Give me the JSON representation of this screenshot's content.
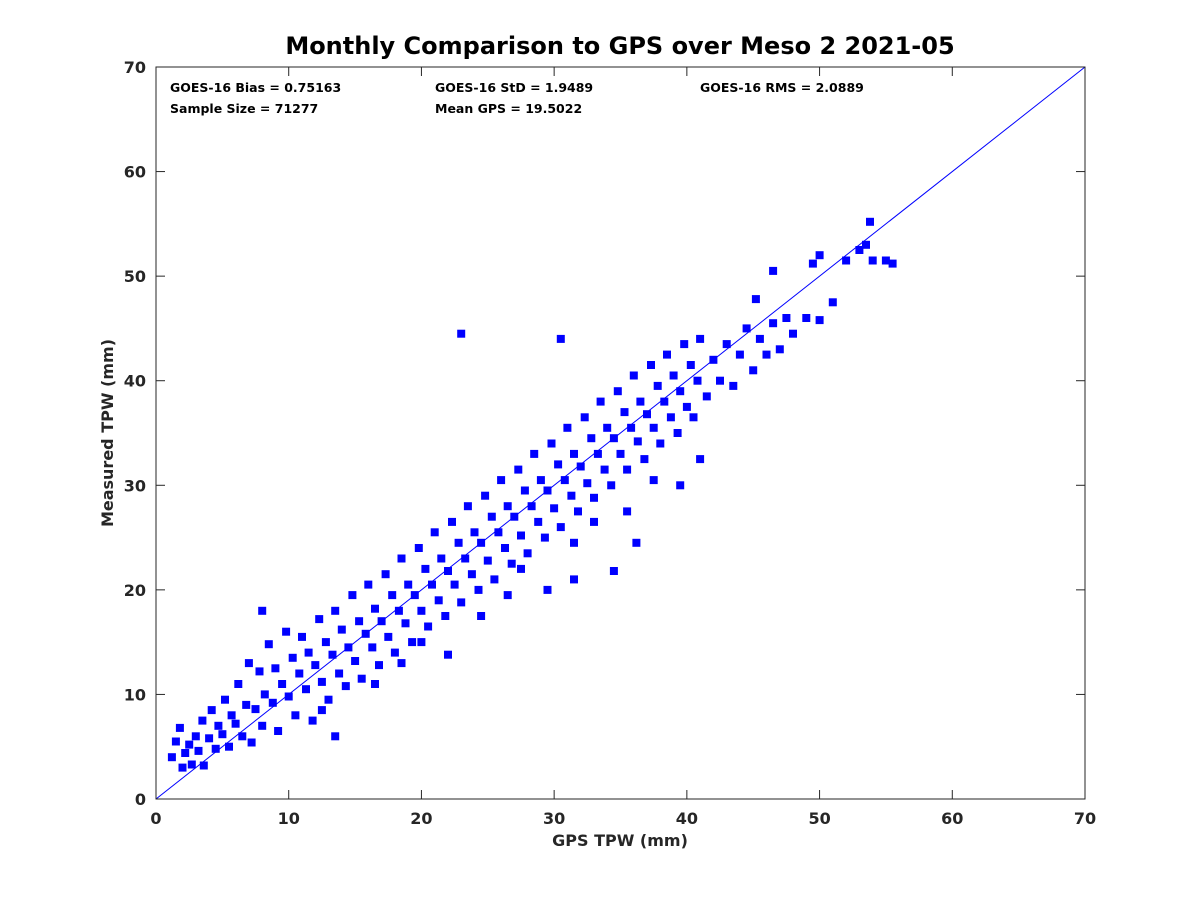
{
  "chart_data": {
    "type": "scatter",
    "title": "Monthly Comparison to GPS over Meso 2 2021-05",
    "xlabel": "GPS TPW (mm)",
    "ylabel": "Measured TPW (mm)",
    "xlim": [
      0,
      70
    ],
    "ylim": [
      0,
      70
    ],
    "xticks": [
      0,
      10,
      20,
      30,
      40,
      50,
      60,
      70
    ],
    "yticks": [
      0,
      10,
      20,
      30,
      40,
      50,
      60,
      70
    ],
    "grid": false,
    "marker": "square",
    "color": "#0000ff",
    "reference_line": {
      "from": [
        0,
        0
      ],
      "to": [
        70,
        70
      ],
      "color": "#0000ff"
    },
    "stats": [
      "GOES-16 Bias = 0.75163",
      "GOES-16 StD = 1.9489",
      "GOES-16 RMS = 2.0889",
      "Sample Size = 71277",
      "Mean GPS = 19.5022"
    ],
    "points": [
      [
        1.2,
        4.0
      ],
      [
        1.5,
        5.5
      ],
      [
        1.8,
        6.8
      ],
      [
        2.0,
        3.0
      ],
      [
        2.2,
        4.4
      ],
      [
        2.5,
        5.2
      ],
      [
        2.7,
        3.3
      ],
      [
        3.0,
        6.0
      ],
      [
        3.2,
        4.6
      ],
      [
        3.5,
        7.5
      ],
      [
        3.6,
        3.2
      ],
      [
        4.0,
        5.8
      ],
      [
        4.2,
        8.5
      ],
      [
        4.5,
        4.8
      ],
      [
        4.7,
        7.0
      ],
      [
        5.0,
        6.2
      ],
      [
        5.2,
        9.5
      ],
      [
        5.5,
        5.0
      ],
      [
        5.7,
        8.0
      ],
      [
        6.0,
        7.2
      ],
      [
        6.2,
        11.0
      ],
      [
        6.5,
        6.0
      ],
      [
        6.8,
        9.0
      ],
      [
        7.0,
        13.0
      ],
      [
        7.2,
        5.4
      ],
      [
        7.5,
        8.6
      ],
      [
        7.8,
        12.2
      ],
      [
        8.0,
        7.0
      ],
      [
        8.2,
        10.0
      ],
      [
        8.5,
        14.8
      ],
      [
        8.8,
        9.2
      ],
      [
        9.0,
        12.5
      ],
      [
        9.2,
        6.5
      ],
      [
        9.5,
        11.0
      ],
      [
        9.8,
        16.0
      ],
      [
        10.0,
        9.8
      ],
      [
        10.3,
        13.5
      ],
      [
        10.5,
        8.0
      ],
      [
        10.8,
        12.0
      ],
      [
        11.0,
        15.5
      ],
      [
        11.3,
        10.5
      ],
      [
        11.5,
        14.0
      ],
      [
        11.8,
        7.5
      ],
      [
        12.0,
        12.8
      ],
      [
        12.3,
        17.2
      ],
      [
        12.5,
        11.2
      ],
      [
        12.8,
        15.0
      ],
      [
        13.0,
        9.5
      ],
      [
        13.3,
        13.8
      ],
      [
        13.5,
        18.0
      ],
      [
        13.8,
        12.0
      ],
      [
        14.0,
        16.2
      ],
      [
        14.3,
        10.8
      ],
      [
        14.5,
        14.5
      ],
      [
        14.8,
        19.5
      ],
      [
        15.0,
        13.2
      ],
      [
        15.3,
        17.0
      ],
      [
        15.5,
        11.5
      ],
      [
        15.8,
        15.8
      ],
      [
        16.0,
        20.5
      ],
      [
        16.3,
        14.5
      ],
      [
        16.5,
        18.2
      ],
      [
        16.8,
        12.8
      ],
      [
        17.0,
        17.0
      ],
      [
        17.3,
        21.5
      ],
      [
        17.5,
        15.5
      ],
      [
        17.8,
        19.5
      ],
      [
        18.0,
        14.0
      ],
      [
        18.3,
        18.0
      ],
      [
        18.5,
        23.0
      ],
      [
        18.8,
        16.8
      ],
      [
        19.0,
        20.5
      ],
      [
        19.3,
        15.0
      ],
      [
        19.5,
        19.5
      ],
      [
        19.8,
        24.0
      ],
      [
        20.0,
        18.0
      ],
      [
        20.3,
        22.0
      ],
      [
        20.5,
        16.5
      ],
      [
        20.8,
        20.5
      ],
      [
        21.0,
        25.5
      ],
      [
        21.3,
        19.0
      ],
      [
        21.5,
        23.0
      ],
      [
        21.8,
        17.5
      ],
      [
        22.0,
        21.8
      ],
      [
        22.3,
        26.5
      ],
      [
        22.5,
        20.5
      ],
      [
        22.8,
        24.5
      ],
      [
        23.0,
        18.8
      ],
      [
        23.3,
        23.0
      ],
      [
        23.5,
        28.0
      ],
      [
        23.8,
        21.5
      ],
      [
        24.0,
        25.5
      ],
      [
        24.3,
        20.0
      ],
      [
        24.5,
        24.5
      ],
      [
        24.8,
        29.0
      ],
      [
        25.0,
        22.8
      ],
      [
        25.3,
        27.0
      ],
      [
        25.5,
        21.0
      ],
      [
        25.8,
        25.5
      ],
      [
        26.0,
        30.5
      ],
      [
        26.3,
        24.0
      ],
      [
        26.5,
        28.0
      ],
      [
        26.8,
        22.5
      ],
      [
        27.0,
        27.0
      ],
      [
        27.3,
        31.5
      ],
      [
        27.5,
        25.2
      ],
      [
        27.8,
        29.5
      ],
      [
        28.0,
        23.5
      ],
      [
        28.3,
        28.0
      ],
      [
        28.5,
        33.0
      ],
      [
        28.8,
        26.5
      ],
      [
        29.0,
        30.5
      ],
      [
        29.3,
        25.0
      ],
      [
        29.5,
        29.5
      ],
      [
        29.8,
        34.0
      ],
      [
        30.0,
        27.8
      ],
      [
        30.3,
        32.0
      ],
      [
        30.5,
        26.0
      ],
      [
        30.8,
        30.5
      ],
      [
        31.0,
        35.5
      ],
      [
        31.3,
        29.0
      ],
      [
        31.5,
        33.0
      ],
      [
        31.8,
        27.5
      ],
      [
        32.0,
        31.8
      ],
      [
        32.3,
        36.5
      ],
      [
        32.5,
        30.2
      ],
      [
        32.8,
        34.5
      ],
      [
        33.0,
        28.8
      ],
      [
        33.3,
        33.0
      ],
      [
        33.5,
        38.0
      ],
      [
        33.8,
        31.5
      ],
      [
        34.0,
        35.5
      ],
      [
        34.3,
        30.0
      ],
      [
        34.5,
        34.5
      ],
      [
        34.8,
        39.0
      ],
      [
        35.0,
        33.0
      ],
      [
        35.3,
        37.0
      ],
      [
        35.5,
        31.5
      ],
      [
        35.8,
        35.5
      ],
      [
        36.0,
        40.5
      ],
      [
        36.3,
        34.2
      ],
      [
        36.5,
        38.0
      ],
      [
        36.8,
        32.5
      ],
      [
        37.0,
        36.8
      ],
      [
        37.3,
        41.5
      ],
      [
        37.5,
        35.5
      ],
      [
        37.8,
        39.5
      ],
      [
        38.0,
        34.0
      ],
      [
        38.3,
        38.0
      ],
      [
        38.5,
        42.5
      ],
      [
        38.8,
        36.5
      ],
      [
        39.0,
        40.5
      ],
      [
        39.3,
        35.0
      ],
      [
        39.5,
        39.0
      ],
      [
        39.8,
        43.5
      ],
      [
        40.0,
        37.5
      ],
      [
        40.3,
        41.5
      ],
      [
        40.5,
        36.5
      ],
      [
        40.8,
        40.0
      ],
      [
        41.0,
        44.0
      ],
      [
        41.5,
        38.5
      ],
      [
        42.0,
        42.0
      ],
      [
        42.5,
        40.0
      ],
      [
        43.0,
        43.5
      ],
      [
        43.5,
        39.5
      ],
      [
        44.0,
        42.5
      ],
      [
        44.5,
        45.0
      ],
      [
        45.0,
        41.0
      ],
      [
        45.5,
        44.0
      ],
      [
        46.0,
        42.5
      ],
      [
        46.5,
        45.5
      ],
      [
        47.0,
        43.0
      ],
      [
        47.5,
        46.0
      ],
      [
        48.0,
        44.5
      ],
      [
        49.0,
        46.0
      ],
      [
        50.0,
        45.8
      ],
      [
        51.0,
        47.5
      ],
      [
        52.0,
        51.5
      ],
      [
        53.0,
        52.5
      ],
      [
        53.5,
        53.0
      ],
      [
        53.8,
        55.2
      ],
      [
        54.0,
        51.5
      ],
      [
        55.0,
        51.5
      ],
      [
        55.5,
        51.2
      ],
      [
        50.0,
        52.0
      ],
      [
        49.5,
        51.2
      ],
      [
        46.5,
        50.5
      ],
      [
        45.2,
        47.8
      ],
      [
        23.0,
        44.5
      ],
      [
        30.5,
        44.0
      ],
      [
        24.5,
        17.5
      ],
      [
        29.5,
        20.0
      ],
      [
        31.5,
        21.0
      ],
      [
        34.5,
        21.8
      ],
      [
        36.2,
        24.5
      ],
      [
        41.0,
        32.5
      ],
      [
        39.5,
        30.0
      ],
      [
        8.0,
        18.0
      ],
      [
        12.5,
        8.5
      ],
      [
        13.5,
        6.0
      ],
      [
        20.0,
        15.0
      ],
      [
        22.0,
        13.8
      ],
      [
        26.5,
        19.5
      ],
      [
        27.5,
        22.0
      ],
      [
        31.5,
        24.5
      ],
      [
        35.5,
        27.5
      ],
      [
        37.5,
        30.5
      ],
      [
        33.0,
        26.5
      ],
      [
        18.5,
        13.0
      ],
      [
        16.5,
        11.0
      ]
    ]
  }
}
